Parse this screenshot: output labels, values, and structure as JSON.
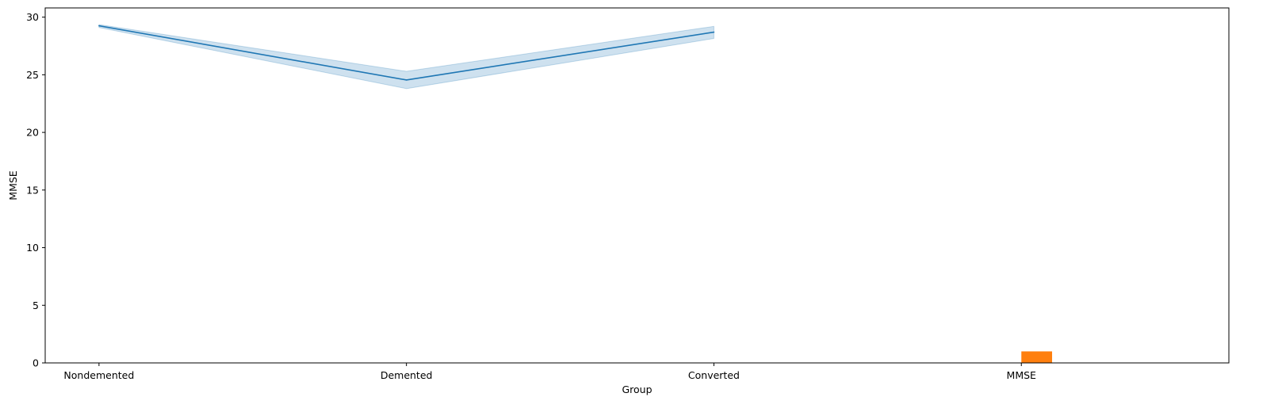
{
  "chart_data": {
    "type": "line",
    "xlabel": "Group",
    "ylabel": "MMSE",
    "categories": [
      "Nondemented",
      "Demented",
      "Converted",
      "MMSE"
    ],
    "ylim": [
      0,
      30.8
    ],
    "yticks": [
      0,
      5,
      10,
      15,
      20,
      25,
      30
    ],
    "grid": false,
    "legend": "none",
    "line_series": {
      "color": "#1f77b4",
      "points": [
        {
          "x": "Nondemented",
          "y": 29.25,
          "ci_low": 29.1,
          "ci_high": 29.35
        },
        {
          "x": "Demented",
          "y": 24.55,
          "ci_low": 23.8,
          "ci_high": 25.3
        },
        {
          "x": "Converted",
          "y": 28.7,
          "ci_low": 28.15,
          "ci_high": 29.2
        }
      ]
    },
    "bar_series": {
      "color": "#ff7f0e",
      "bars": [
        {
          "x": "MMSE",
          "value": 1
        }
      ]
    }
  }
}
